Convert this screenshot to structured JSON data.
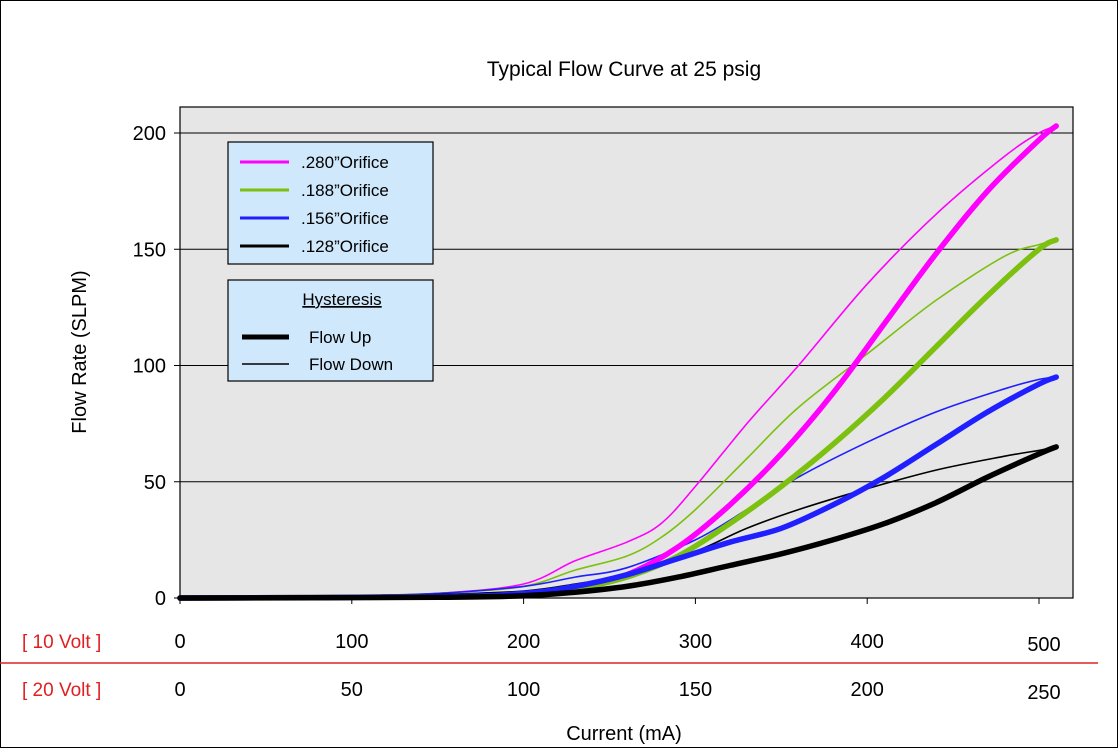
{
  "chart_data": {
    "type": "line",
    "title": "Typical Flow Curve at 25 psig",
    "xlabel": "Current (mA)",
    "ylabel": "Flow Rate (SLPM)",
    "xlim": [
      0,
      520
    ],
    "ylim": [
      0,
      200
    ],
    "grid": {
      "horizontal": true,
      "vertical": false
    },
    "plot_background": "#e6e6e6",
    "yticks": [
      "0",
      "50",
      "100",
      "150",
      "200"
    ],
    "ytick_values": [
      0,
      50,
      100,
      150,
      200
    ],
    "x_axes": [
      {
        "label": "[ 10 Volt ]",
        "color": "#e02020",
        "tick_values": [
          0,
          100,
          200,
          300,
          400,
          500
        ],
        "tick_labels": [
          "0",
          "100",
          "200",
          "300",
          "400",
          "500"
        ]
      },
      {
        "label": "[ 20 Volt ]",
        "color": "#e02020",
        "tick_values": [
          0,
          100,
          200,
          300,
          400,
          500
        ],
        "tick_labels": [
          "0",
          "50",
          "100",
          "150",
          "200",
          "250"
        ]
      }
    ],
    "legend": {
      "position": "top-left",
      "items": [
        {
          "label": ".280”Orifice",
          "color": "#ff00ff"
        },
        {
          "label": ".188”Orifice",
          "color": "#7cc010"
        },
        {
          "label": ".156”Orifice",
          "color": "#1f1fff"
        },
        {
          "label": ".128”Orifice",
          "color": "#000000"
        }
      ]
    },
    "hysteresis_legend": {
      "title": "Hysteresis",
      "items": [
        {
          "label": "Flow Up",
          "line": "thick"
        },
        {
          "label": "Flow Down",
          "line": "thin"
        }
      ]
    },
    "series": [
      {
        "name": ".280”Orifice",
        "direction": "Flow Up",
        "color": "#ff00ff",
        "x": [
          0,
          150,
          200,
          230,
          260,
          290,
          320,
          350,
          380,
          410,
          440,
          470,
          500,
          510
        ],
        "y": [
          0,
          0.5,
          1.5,
          4,
          10,
          22,
          40,
          62,
          88,
          118,
          148,
          175,
          197,
          203
        ]
      },
      {
        "name": ".280”Orifice",
        "direction": "Flow Down",
        "color": "#ff00ff",
        "x": [
          0,
          100,
          150,
          200,
          230,
          260,
          280,
          300,
          330,
          360,
          400,
          440,
          480,
          500,
          510
        ],
        "y": [
          0.5,
          1,
          2,
          6,
          16,
          24,
          32,
          48,
          75,
          100,
          135,
          165,
          190,
          200,
          203
        ]
      },
      {
        "name": ".188”Orifice",
        "direction": "Flow Up",
        "color": "#7cc010",
        "x": [
          0,
          150,
          200,
          230,
          260,
          290,
          320,
          350,
          380,
          410,
          440,
          470,
          500,
          510
        ],
        "y": [
          0,
          0.5,
          1.5,
          4,
          9,
          18,
          32,
          48,
          66,
          86,
          108,
          130,
          150,
          154
        ]
      },
      {
        "name": ".188”Orifice",
        "direction": "Flow Down",
        "color": "#7cc010",
        "x": [
          0,
          100,
          150,
          200,
          230,
          260,
          280,
          300,
          330,
          360,
          400,
          440,
          480,
          500,
          510
        ],
        "y": [
          0.5,
          1,
          2,
          5,
          12,
          18,
          26,
          38,
          60,
          82,
          105,
          128,
          147,
          152,
          154
        ]
      },
      {
        "name": ".156”Orifice",
        "direction": "Flow Up",
        "color": "#1f1fff",
        "x": [
          0,
          150,
          200,
          230,
          260,
          290,
          320,
          350,
          380,
          410,
          440,
          470,
          500,
          510
        ],
        "y": [
          0,
          0.5,
          2,
          5,
          10,
          17,
          24,
          30,
          40,
          52,
          66,
          80,
          92,
          95
        ]
      },
      {
        "name": ".156”Orifice",
        "direction": "Flow Down",
        "color": "#1f1fff",
        "x": [
          0,
          100,
          150,
          200,
          230,
          260,
          300,
          330,
          360,
          400,
          440,
          480,
          500,
          510
        ],
        "y": [
          0.5,
          1,
          2,
          5,
          9,
          13,
          25,
          38,
          52,
          67,
          80,
          90,
          94,
          95
        ]
      },
      {
        "name": ".128”Orifice",
        "direction": "Flow Up",
        "color": "#000000",
        "x": [
          0,
          150,
          200,
          230,
          260,
          290,
          320,
          350,
          380,
          410,
          440,
          470,
          500,
          510
        ],
        "y": [
          0,
          0.3,
          1,
          2.5,
          5,
          9,
          14,
          19,
          25,
          32,
          41,
          52,
          62,
          65
        ]
      },
      {
        "name": ".128”Orifice",
        "direction": "Flow Down",
        "color": "#000000",
        "x": [
          0,
          100,
          150,
          200,
          230,
          260,
          300,
          330,
          360,
          400,
          440,
          480,
          500,
          510
        ],
        "y": [
          0.3,
          0.6,
          1.5,
          3,
          6,
          10,
          20,
          30,
          38,
          47,
          55,
          61,
          63.5,
          65
        ]
      }
    ]
  }
}
